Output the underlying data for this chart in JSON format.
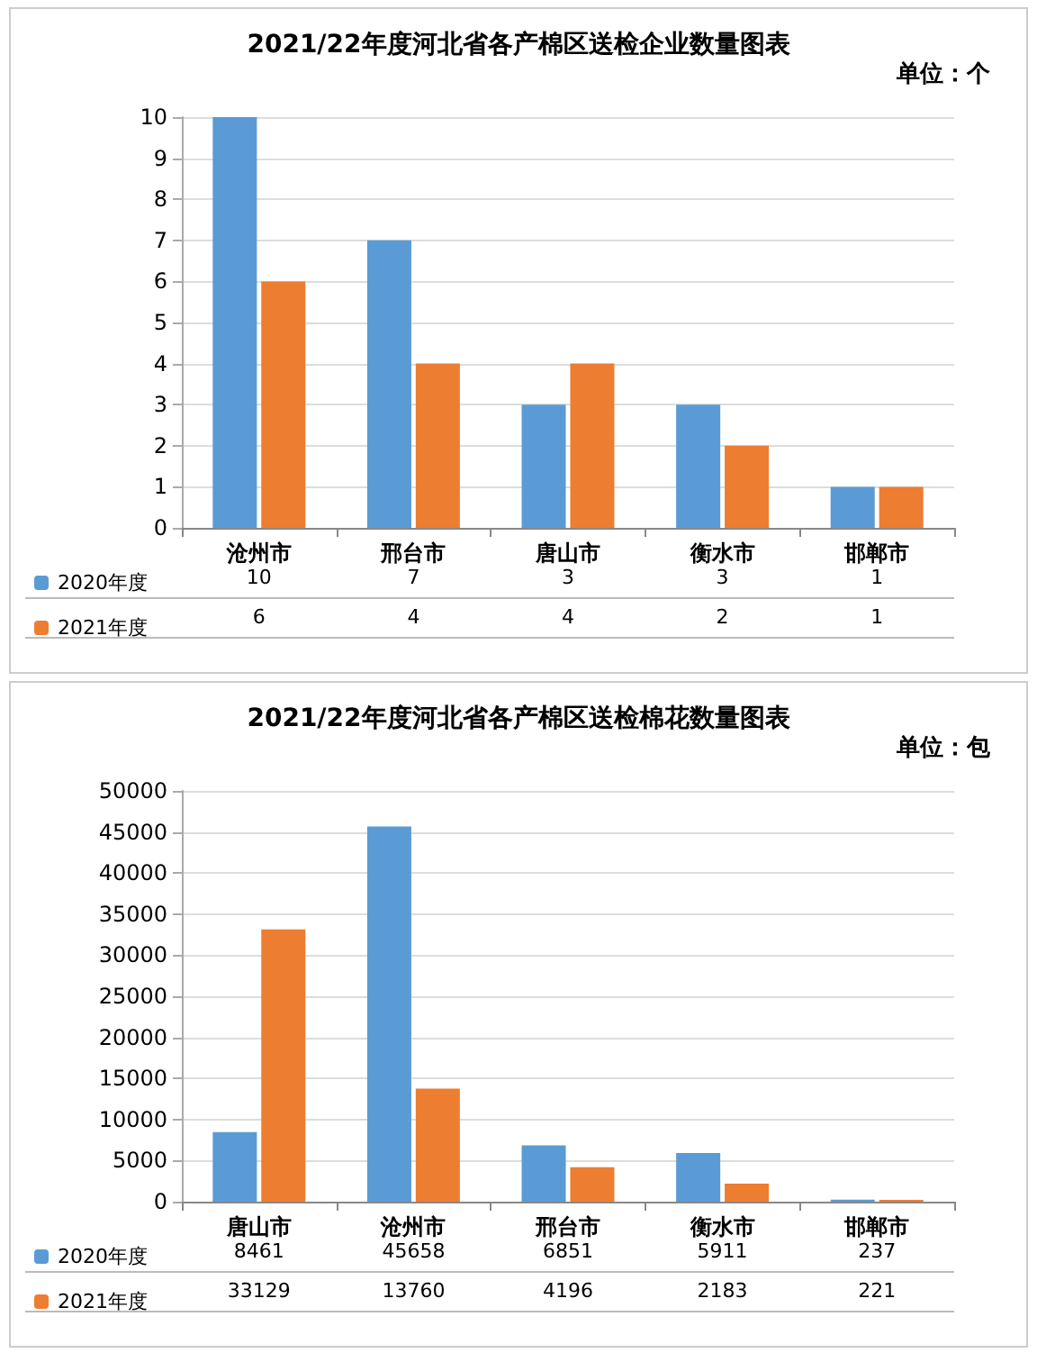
{
  "chart_data": [
    {
      "type": "bar",
      "title": "2021/22年度河北省各产棉区送检企业数量图表",
      "annotations": [
        "单位：个"
      ],
      "categories": [
        "沧州市",
        "邢台市",
        "唐山市",
        "衡水市",
        "邯郸市"
      ],
      "series": [
        {
          "name": "2020年度",
          "color": "#5b9bd5",
          "values": [
            10,
            7,
            3,
            3,
            1
          ]
        },
        {
          "name": "2021年度",
          "color": "#ed7d31",
          "values": [
            6,
            4,
            4,
            2,
            1
          ]
        }
      ],
      "ylim": [
        0,
        10
      ],
      "yticks": [
        0,
        1,
        2,
        3,
        4,
        5,
        6,
        7,
        8,
        9,
        10
      ],
      "grid": "y",
      "legend": "bottom left",
      "data_labels": true
    },
    {
      "type": "bar",
      "title": "2021/22年度河北省各产棉区送检棉花数量图表",
      "annotations": [
        "单位：包"
      ],
      "categories": [
        "唐山市",
        "沧州市",
        "邢台市",
        "衡水市",
        "邯郸市"
      ],
      "series": [
        {
          "name": "2020年度",
          "color": "#5b9bd5",
          "values": [
            8461,
            45658,
            6851,
            5911,
            237
          ]
        },
        {
          "name": "2021年度",
          "color": "#ed7d31",
          "values": [
            33129,
            13760,
            4196,
            2183,
            221
          ]
        }
      ],
      "ylim": [
        0,
        50000
      ],
      "yticks": [
        0,
        5000,
        10000,
        15000,
        20000,
        25000,
        30000,
        35000,
        40000,
        45000,
        50000
      ],
      "grid": "y",
      "legend": "bottom left",
      "data_labels": true
    }
  ]
}
